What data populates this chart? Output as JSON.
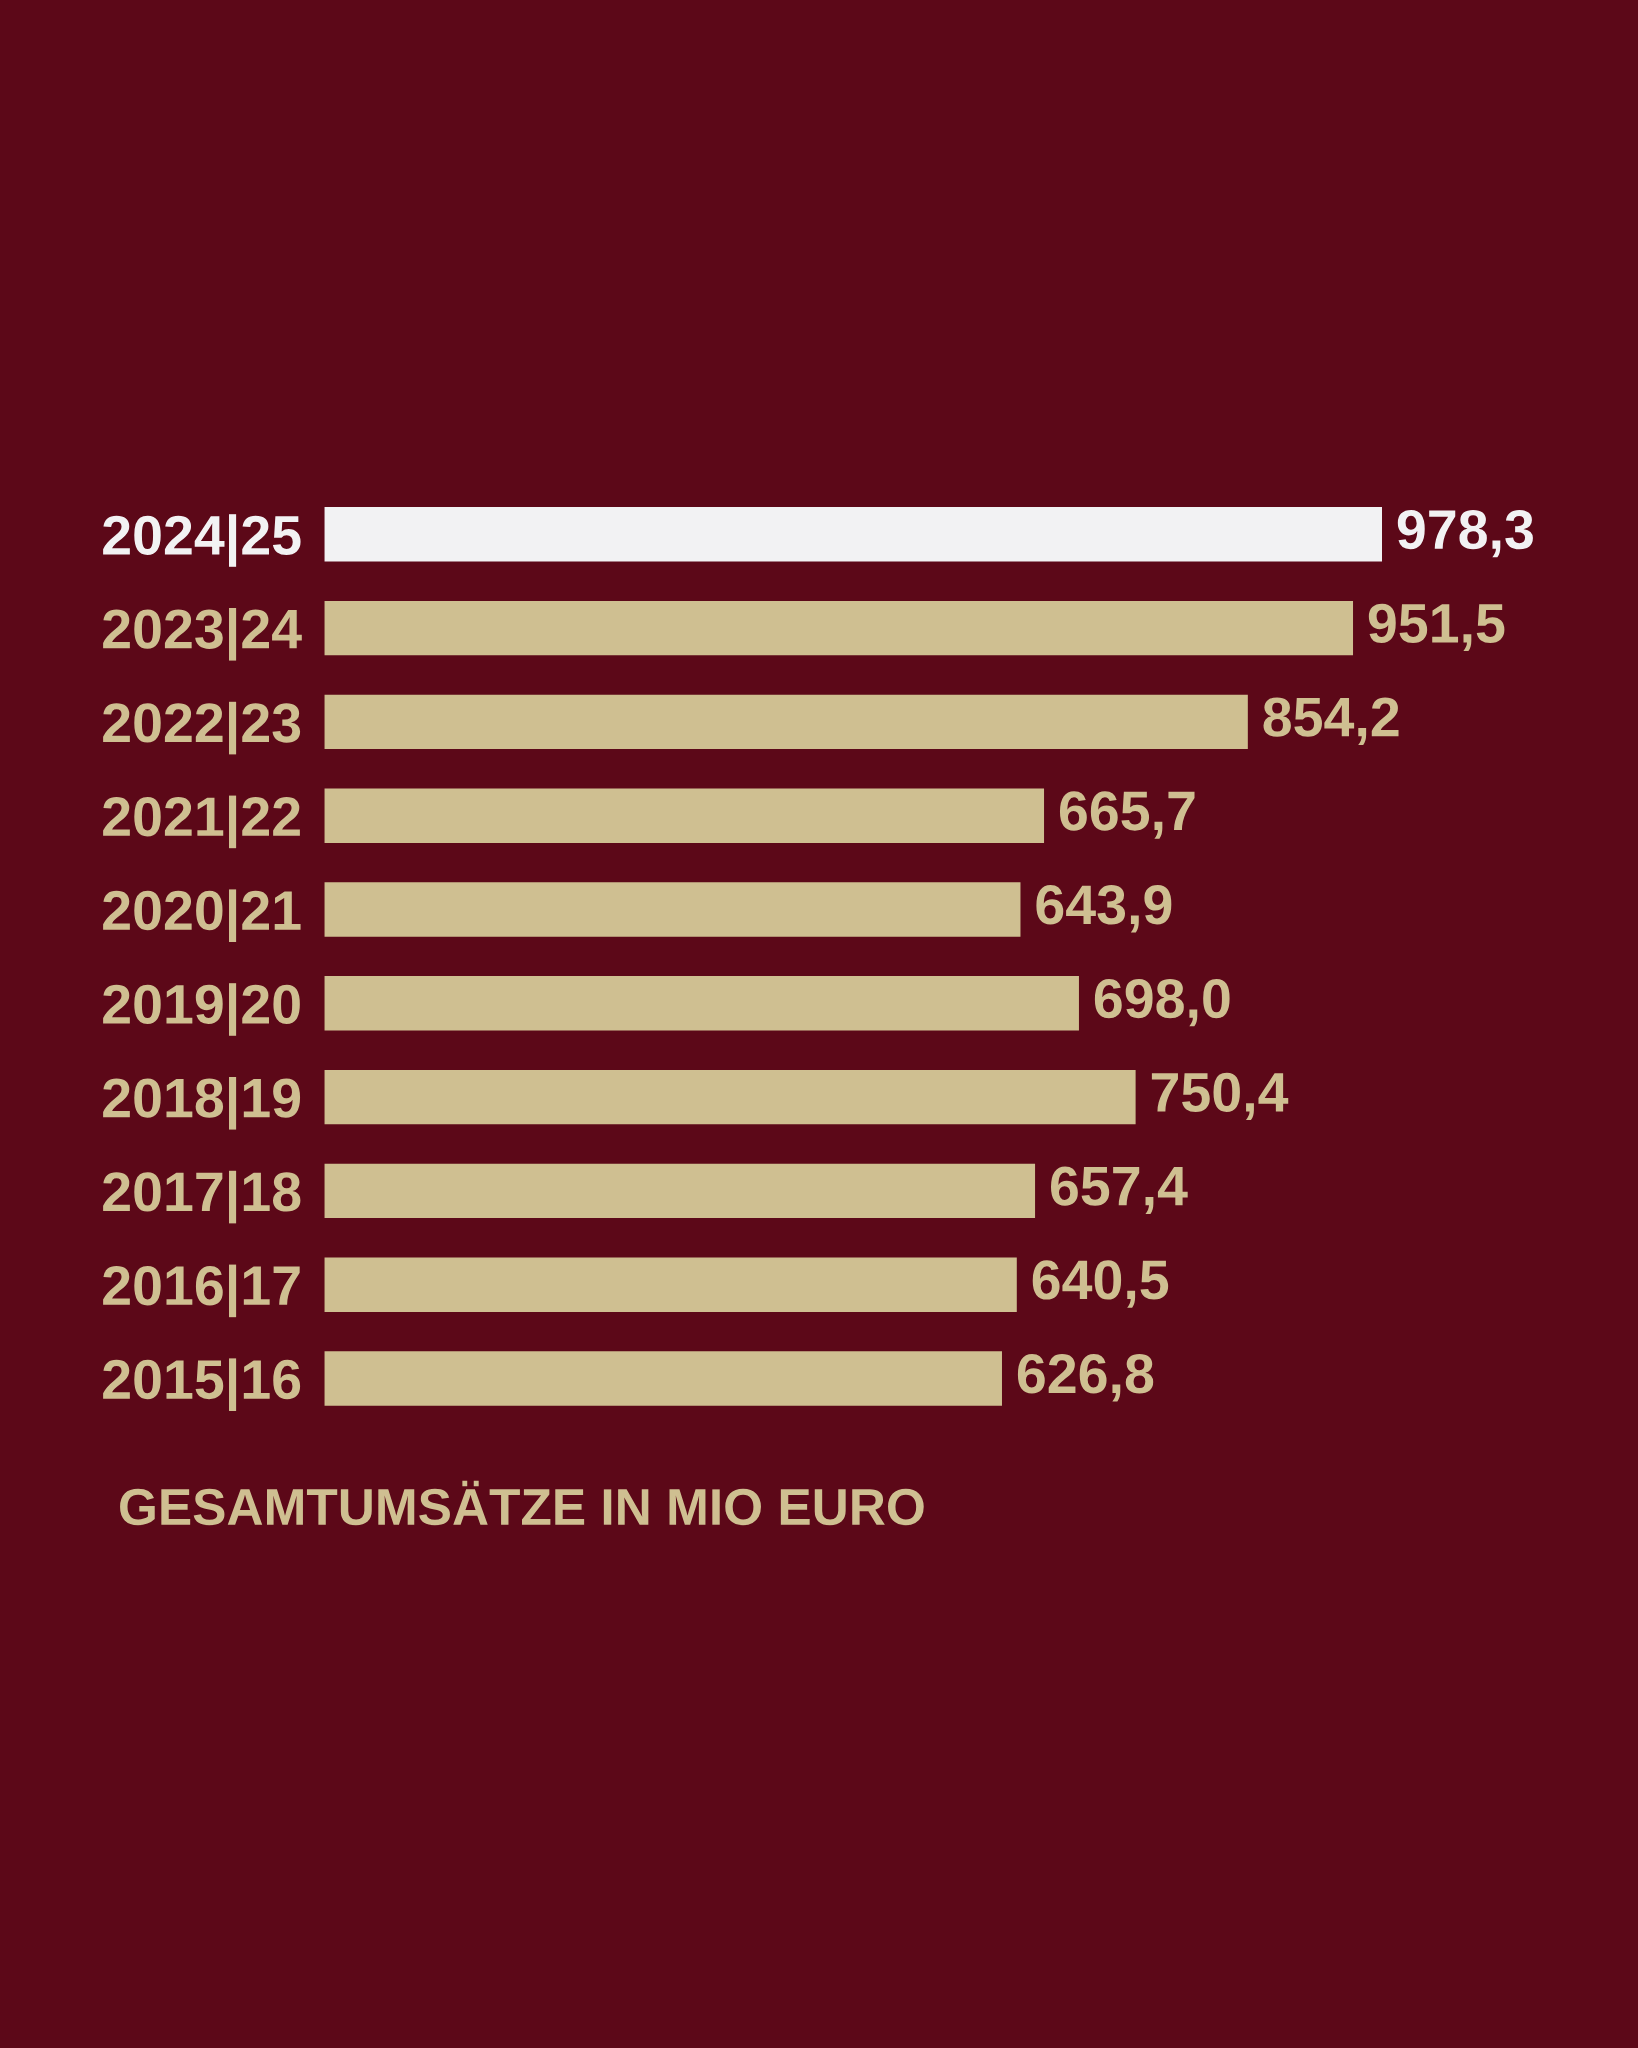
{
  "chart_data": {
    "type": "bar",
    "orientation": "horizontal",
    "title": "GESAMTUMSÄTZE IN MIO EURO",
    "categories": [
      "2024|25",
      "2023|24",
      "2022|23",
      "2021|22",
      "2020|21",
      "2019|20",
      "2018|19",
      "2017|18",
      "2016|17",
      "2015|16"
    ],
    "values": [
      978.3,
      951.5,
      854.2,
      665.7,
      643.9,
      698.0,
      750.4,
      657.4,
      640.5,
      626.8
    ],
    "colors": [
      "#f2f2f3",
      "#cfbf91",
      "#cfbf91",
      "#cfbf91",
      "#cfbf91",
      "#cfbf91",
      "#cfbf91",
      "#cfbf91",
      "#cfbf91",
      "#cfbf91"
    ],
    "value_labels": [
      "978,3",
      "951,5",
      "854,2",
      "665,7",
      "643,9",
      "698,0",
      "750,4",
      "657,4",
      "640,5",
      "626,8"
    ],
    "tick_labels": "y",
    "grid": false,
    "legend": false
  }
}
